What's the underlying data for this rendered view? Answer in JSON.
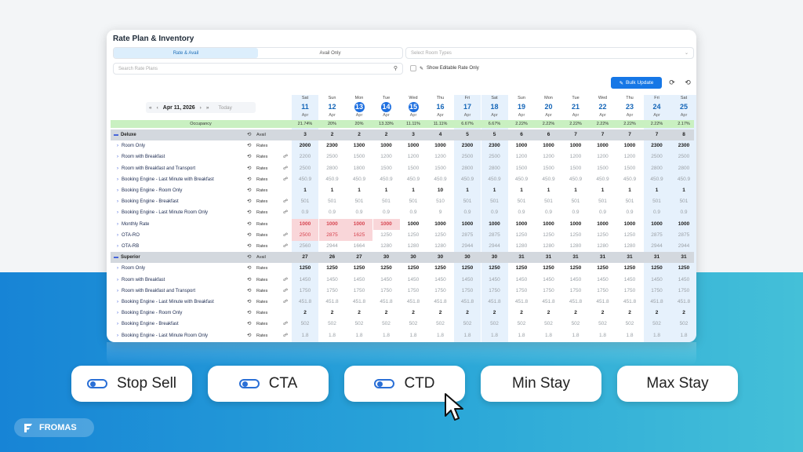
{
  "title": "Rate Plan & Inventory",
  "tabs": [
    "Rate & Avail",
    "Avail Only"
  ],
  "room_type_placeholder": "Select Room Types",
  "search_placeholder": "Search Rate Plans",
  "editable_label": "Show Editable Rate Only",
  "bulk_label": "Bulk Update",
  "date_label": "Apr 11, 2026",
  "today_label": "Today",
  "occupancy_label": "Occupancy",
  "days": [
    {
      "dow": "Sat",
      "d": "11",
      "m": "Apr",
      "hl": true,
      "circ": false
    },
    {
      "dow": "Sun",
      "d": "12",
      "m": "Apr",
      "hl": false,
      "circ": false
    },
    {
      "dow": "Mon",
      "d": "13",
      "m": "Apr",
      "hl": false,
      "circ": true
    },
    {
      "dow": "Tue",
      "d": "14",
      "m": "Apr",
      "hl": false,
      "circ": true
    },
    {
      "dow": "Wed",
      "d": "15",
      "m": "Apr",
      "hl": false,
      "circ": true
    },
    {
      "dow": "Thu",
      "d": "16",
      "m": "Apr",
      "hl": false,
      "circ": false
    },
    {
      "dow": "Fri",
      "d": "17",
      "m": "Apr",
      "hl": true,
      "circ": false
    },
    {
      "dow": "Sat",
      "d": "18",
      "m": "Apr",
      "hl": true,
      "circ": false
    },
    {
      "dow": "Sun",
      "d": "19",
      "m": "Apr",
      "hl": false,
      "circ": false
    },
    {
      "dow": "Mon",
      "d": "20",
      "m": "Apr",
      "hl": false,
      "circ": false
    },
    {
      "dow": "Tue",
      "d": "21",
      "m": "Apr",
      "hl": false,
      "circ": false
    },
    {
      "dow": "Wed",
      "d": "22",
      "m": "Apr",
      "hl": false,
      "circ": false
    },
    {
      "dow": "Thu",
      "d": "23",
      "m": "Apr",
      "hl": false,
      "circ": false
    },
    {
      "dow": "Fri",
      "d": "24",
      "m": "Apr",
      "hl": true,
      "circ": false
    },
    {
      "dow": "Sat",
      "d": "25",
      "m": "Apr",
      "hl": true,
      "circ": false
    }
  ],
  "occupancy": [
    "21.74%",
    "20%",
    "20%",
    "13.33%",
    "11.11%",
    "11.11%",
    "6.67%",
    "6.67%",
    "2.22%",
    "2.22%",
    "2.22%",
    "2.22%",
    "2.22%",
    "2.22%",
    "2.17%"
  ],
  "rows": [
    {
      "kind": "room",
      "name": "Deluxe",
      "label": "Avail",
      "vals": [
        "3",
        "2",
        "2",
        "2",
        "3",
        "4",
        "5",
        "5",
        "6",
        "6",
        "7",
        "7",
        "7",
        "7",
        "8"
      ]
    },
    {
      "kind": "rate",
      "name": "Room Only",
      "label": "Rates",
      "link": false,
      "style": "bold",
      "vals": [
        "2000",
        "2300",
        "1300",
        "1000",
        "1000",
        "1000",
        "2300",
        "2300",
        "1000",
        "1000",
        "1000",
        "1000",
        "1000",
        "2300",
        "2300"
      ]
    },
    {
      "kind": "rate",
      "name": "Room with Breakfast",
      "label": "Rates",
      "link": true,
      "style": "grey",
      "vals": [
        "2200",
        "2500",
        "1500",
        "1200",
        "1200",
        "1200",
        "2500",
        "2500",
        "1200",
        "1200",
        "1200",
        "1200",
        "1200",
        "2500",
        "2500"
      ]
    },
    {
      "kind": "rate",
      "name": "Room with Breakfast and Transport",
      "label": "Rates",
      "link": true,
      "style": "grey",
      "vals": [
        "2500",
        "2800",
        "1800",
        "1500",
        "1500",
        "1500",
        "2800",
        "2800",
        "1500",
        "1500",
        "1500",
        "1500",
        "1500",
        "2800",
        "2800"
      ]
    },
    {
      "kind": "rate",
      "name": "Booking Engine - Last Minute with Breakfast",
      "label": "Rates",
      "link": true,
      "style": "grey",
      "vals": [
        "450.9",
        "450.9",
        "450.9",
        "450.9",
        "450.9",
        "450.9",
        "450.9",
        "450.9",
        "450.9",
        "450.9",
        "450.9",
        "450.9",
        "450.9",
        "450.9",
        "450.9"
      ]
    },
    {
      "kind": "rate",
      "name": "Booking Engine - Room Only",
      "label": "Rates",
      "link": false,
      "style": "bold",
      "vals": [
        "1",
        "1",
        "1",
        "1",
        "1",
        "10",
        "1",
        "1",
        "1",
        "1",
        "1",
        "1",
        "1",
        "1",
        "1"
      ]
    },
    {
      "kind": "rate",
      "name": "Booking Engine - Breakfast",
      "label": "Rates",
      "link": true,
      "style": "grey",
      "vals": [
        "501",
        "501",
        "501",
        "501",
        "501",
        "510",
        "501",
        "501",
        "501",
        "501",
        "501",
        "501",
        "501",
        "501",
        "501"
      ]
    },
    {
      "kind": "rate",
      "name": "Booking Engine - Last Minute Room Only",
      "label": "Rates",
      "link": true,
      "style": "grey",
      "vals": [
        "0.9",
        "0.9",
        "0.9",
        "0.9",
        "0.9",
        "9",
        "0.9",
        "0.9",
        "0.9",
        "0.9",
        "0.9",
        "0.9",
        "0.9",
        "0.9",
        "0.9"
      ]
    },
    {
      "kind": "rate",
      "name": "Monthly Rate",
      "label": "Rates",
      "link": false,
      "style": "bold",
      "red": [
        0,
        1,
        2,
        3
      ],
      "vals": [
        "1000",
        "1000",
        "1000",
        "1000",
        "1000",
        "1000",
        "1000",
        "1000",
        "1000",
        "1000",
        "1000",
        "1000",
        "1000",
        "1000",
        "1000"
      ]
    },
    {
      "kind": "rate",
      "name": "OTA-RO",
      "label": "Rates",
      "link": true,
      "style": "grey",
      "red": [
        0,
        1,
        2
      ],
      "vals": [
        "2500",
        "2875",
        "1625",
        "1250",
        "1250",
        "1250",
        "2875",
        "2875",
        "1250",
        "1250",
        "1250",
        "1250",
        "1250",
        "2875",
        "2875"
      ]
    },
    {
      "kind": "rate",
      "name": "OTA-RB",
      "label": "Rates",
      "link": true,
      "style": "grey",
      "vals": [
        "2560",
        "2944",
        "1664",
        "1280",
        "1280",
        "1280",
        "2944",
        "2944",
        "1280",
        "1280",
        "1280",
        "1280",
        "1280",
        "2944",
        "2944"
      ]
    },
    {
      "kind": "room",
      "name": "Superior",
      "label": "Avail",
      "vals": [
        "27",
        "26",
        "27",
        "30",
        "30",
        "30",
        "30",
        "30",
        "31",
        "31",
        "31",
        "31",
        "31",
        "31",
        "31"
      ]
    },
    {
      "kind": "rate",
      "name": "Room Only",
      "label": "Rates",
      "link": false,
      "style": "bold",
      "vals": [
        "1250",
        "1250",
        "1250",
        "1250",
        "1250",
        "1250",
        "1250",
        "1250",
        "1250",
        "1250",
        "1250",
        "1250",
        "1250",
        "1250",
        "1250"
      ]
    },
    {
      "kind": "rate",
      "name": "Room with Breakfast",
      "label": "Rates",
      "link": true,
      "style": "grey",
      "vals": [
        "1450",
        "1450",
        "1450",
        "1450",
        "1450",
        "1450",
        "1450",
        "1450",
        "1450",
        "1450",
        "1450",
        "1450",
        "1450",
        "1450",
        "1450"
      ]
    },
    {
      "kind": "rate",
      "name": "Room with Breakfast and Transport",
      "label": "Rates",
      "link": true,
      "style": "grey",
      "vals": [
        "1750",
        "1750",
        "1750",
        "1750",
        "1750",
        "1750",
        "1750",
        "1750",
        "1750",
        "1750",
        "1750",
        "1750",
        "1750",
        "1750",
        "1750"
      ]
    },
    {
      "kind": "rate",
      "name": "Booking Engine - Last Minute with Breakfast",
      "label": "Rates",
      "link": true,
      "style": "grey",
      "vals": [
        "451.8",
        "451.8",
        "451.8",
        "451.8",
        "451.8",
        "451.8",
        "451.8",
        "451.8",
        "451.8",
        "451.8",
        "451.8",
        "451.8",
        "451.8",
        "451.8",
        "451.8"
      ]
    },
    {
      "kind": "rate",
      "name": "Booking Engine - Room Only",
      "label": "Rates",
      "link": false,
      "style": "bold",
      "vals": [
        "2",
        "2",
        "2",
        "2",
        "2",
        "2",
        "2",
        "2",
        "2",
        "2",
        "2",
        "2",
        "2",
        "2",
        "2"
      ]
    },
    {
      "kind": "rate",
      "name": "Booking Engine - Breakfast",
      "label": "Rates",
      "link": true,
      "style": "grey",
      "vals": [
        "502",
        "502",
        "502",
        "502",
        "502",
        "502",
        "502",
        "502",
        "502",
        "502",
        "502",
        "502",
        "502",
        "502",
        "502"
      ]
    },
    {
      "kind": "rate",
      "name": "Booking Engine - Last Minute Room Only",
      "label": "Rates",
      "link": true,
      "style": "grey",
      "vals": [
        "1.8",
        "1.8",
        "1.8",
        "1.8",
        "1.8",
        "1.8",
        "1.8",
        "1.8",
        "1.8",
        "1.8",
        "1.8",
        "1.8",
        "1.8",
        "1.8",
        "1.8"
      ]
    }
  ],
  "pills": [
    {
      "label": "Stop Sell",
      "toggle": true
    },
    {
      "label": "CTA",
      "toggle": true
    },
    {
      "label": "CTD",
      "toggle": true
    },
    {
      "label": "Min Stay",
      "toggle": false
    },
    {
      "label": "Max Stay",
      "toggle": false
    }
  ],
  "brand": "FROMAS",
  "colors": {
    "accent": "#1677e6",
    "occupancy": "#c9f0c1",
    "warning": "#f9d6d9"
  }
}
